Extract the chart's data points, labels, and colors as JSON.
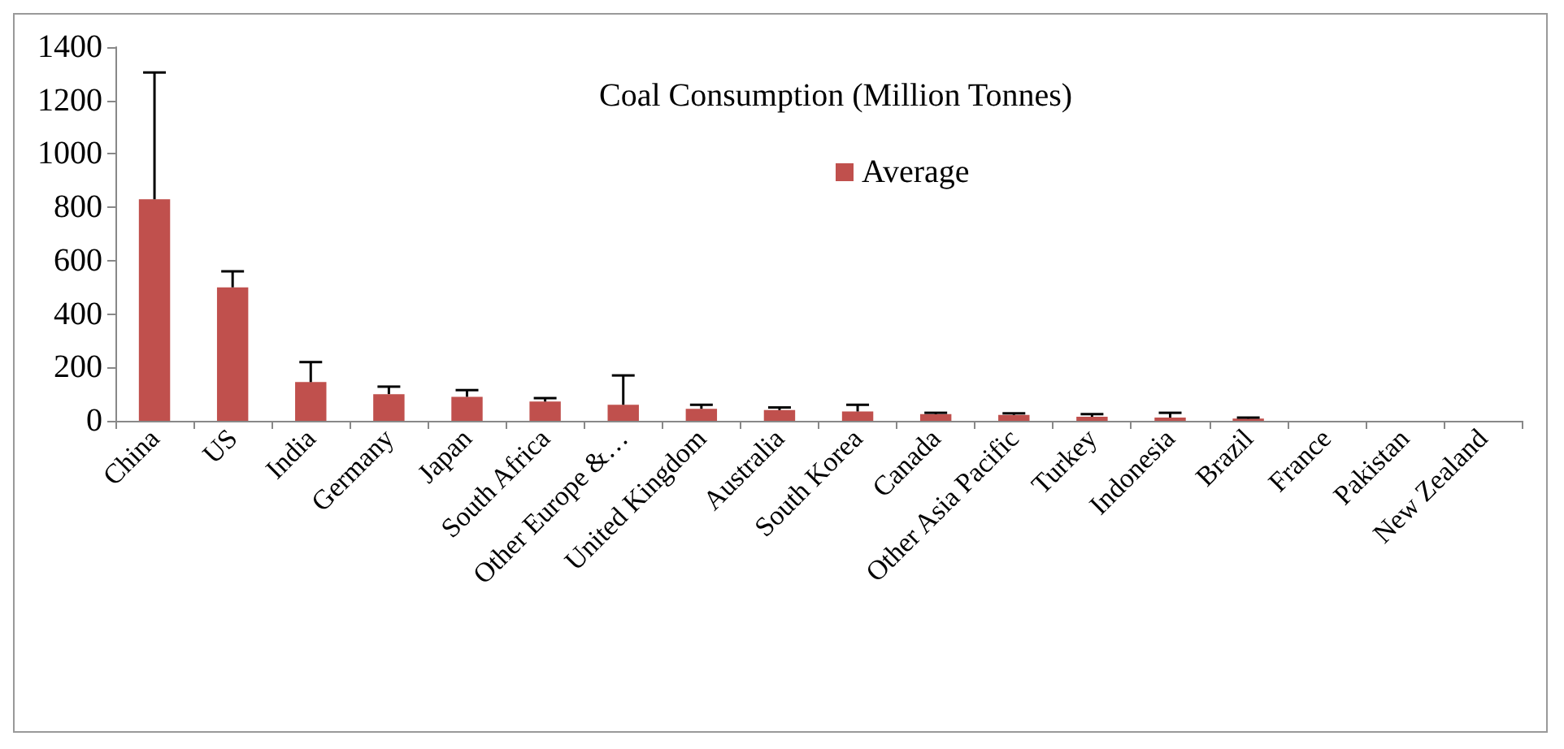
{
  "chart_data": {
    "type": "bar",
    "title": "Coal Consumption (Million Tonnes)",
    "categories": [
      "China",
      "US",
      "India",
      "Germany",
      "Japan",
      "South Africa",
      "Other Europe &…",
      "United Kingdom",
      "Australia",
      "South Korea",
      "Canada",
      "Other Asia Pacific",
      "Turkey",
      "Indonesia",
      "Brazil",
      "France",
      "Pakistan",
      "New Zealand"
    ],
    "series": [
      {
        "name": "Average",
        "color": "#c0504d",
        "values": [
          830,
          500,
          145,
          100,
          90,
          72,
          60,
          45,
          40,
          35,
          25,
          22,
          15,
          12,
          8,
          null,
          null,
          null
        ],
        "errors": [
          [
            830,
            1305
          ],
          [
            500,
            560
          ],
          [
            145,
            220
          ],
          [
            100,
            128
          ],
          [
            90,
            115
          ],
          [
            72,
            85
          ],
          [
            60,
            170
          ],
          [
            45,
            60
          ],
          [
            40,
            50
          ],
          [
            35,
            60
          ],
          [
            25,
            30
          ],
          [
            22,
            28
          ],
          [
            15,
            25
          ],
          [
            12,
            30
          ],
          [
            8,
            12
          ],
          null,
          null,
          null
        ]
      }
    ],
    "ylim": [
      0,
      1400
    ],
    "yticks": [
      0,
      200,
      400,
      600,
      800,
      1000,
      1200,
      1400
    ],
    "grid": false,
    "legend": "top"
  }
}
